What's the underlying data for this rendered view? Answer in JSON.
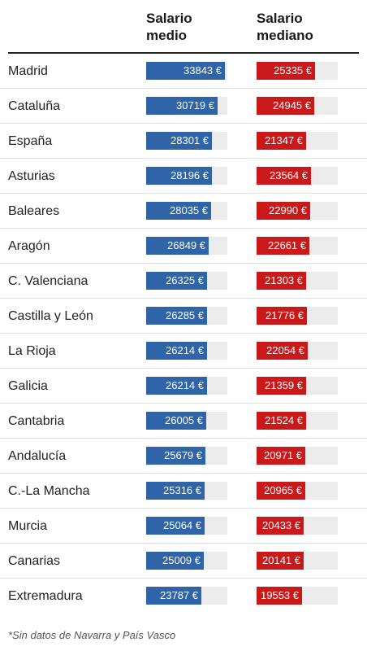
{
  "chart_data": {
    "type": "table",
    "columns": [
      "Salario medio",
      "Salario mediano"
    ],
    "column_colors": [
      "#2f64a8",
      "#c9191b"
    ],
    "unit": "€",
    "max": 35000,
    "rows": [
      {
        "region": "Madrid",
        "medio": 33843,
        "mediano": 25335
      },
      {
        "region": "Cataluña",
        "medio": 30719,
        "mediano": 24945
      },
      {
        "region": "España",
        "medio": 28301,
        "mediano": 21347
      },
      {
        "region": "Asturias",
        "medio": 28196,
        "mediano": 23564
      },
      {
        "region": "Baleares",
        "medio": 28035,
        "mediano": 22990
      },
      {
        "region": "Aragón",
        "medio": 26849,
        "mediano": 22661
      },
      {
        "region": "C. Valenciana",
        "medio": 26325,
        "mediano": 21303
      },
      {
        "region": "Castilla y León",
        "medio": 26285,
        "mediano": 21776
      },
      {
        "region": "La Rioja",
        "medio": 26214,
        "mediano": 22054
      },
      {
        "region": "Galicia",
        "medio": 26214,
        "mediano": 21359
      },
      {
        "region": "Cantabria",
        "medio": 26005,
        "mediano": 21524
      },
      {
        "region": "Andalucía",
        "medio": 25679,
        "mediano": 20971
      },
      {
        "region": "C.-La Mancha",
        "medio": 25316,
        "mediano": 20965
      },
      {
        "region": "Murcia",
        "medio": 25064,
        "mediano": 20433
      },
      {
        "region": "Canarias",
        "medio": 25009,
        "mediano": 20141
      },
      {
        "region": "Extremadura",
        "medio": 23787,
        "mediano": 19553
      }
    ],
    "footnote": "*Sin datos de Navarra y País Vasco"
  },
  "header": {
    "col1_line1": "Salario",
    "col1_line2": "medio",
    "col2_line1": "Salario",
    "col2_line2": "mediano"
  }
}
